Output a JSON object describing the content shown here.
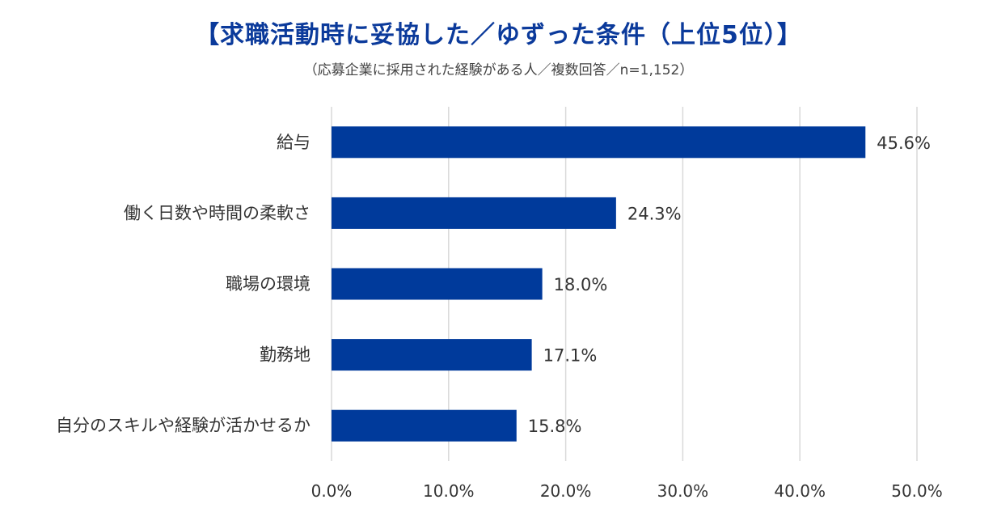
{
  "chart_data": {
    "type": "bar",
    "orientation": "horizontal",
    "title": "【求職活動時に妥協した／ゆずった条件（上位5位）】",
    "subtitle": "（応募企業に採用された経験がある人／複数回答／n=1,152）",
    "categories": [
      "給与",
      "働く日数や時間の柔軟さ",
      "職場の環境",
      "勤務地",
      "自分のスキルや経験が活かせるか"
    ],
    "values": [
      45.6,
      24.3,
      18.0,
      17.1,
      15.8
    ],
    "value_labels": [
      "45.6%",
      "24.3%",
      "18.0%",
      "17.1%",
      "15.8%"
    ],
    "xlim": [
      0,
      50
    ],
    "xticks": [
      0,
      10,
      20,
      30,
      40,
      50
    ],
    "xtick_labels": [
      "0.0%",
      "10.0%",
      "20.0%",
      "30.0%",
      "40.0%",
      "50.0%"
    ],
    "xlabel": "",
    "ylabel": "",
    "grid": "vertical",
    "legend": "none",
    "colors": {
      "bar": "#003a9b",
      "title": "#0b3a9b",
      "grid": "#d9d9d9"
    }
  }
}
